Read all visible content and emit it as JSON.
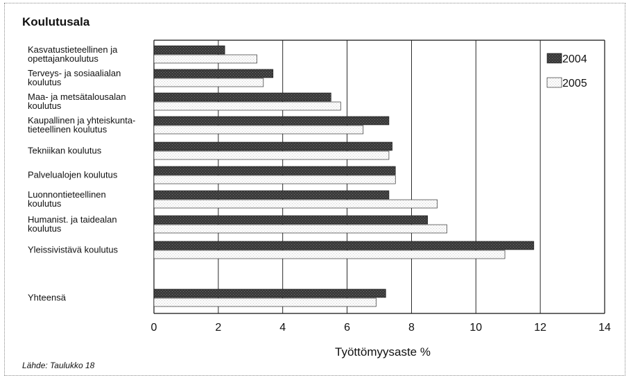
{
  "chart_data": {
    "type": "bar",
    "orientation": "horizontal",
    "title": "Koulutusala",
    "xlabel": "Työttömyysaste %",
    "ylabel": "",
    "xlim": [
      0,
      14
    ],
    "x_ticks": [
      "0",
      "2",
      "4",
      "6",
      "8",
      "10",
      "12",
      "14"
    ],
    "grid": "vertical",
    "legend_position": "top-right",
    "categories": [
      [
        "Kasvatustieteellinen ja",
        "opettajankoulutus"
      ],
      [
        "Terveys- ja sosiaalialan",
        "koulutus"
      ],
      [
        "Maa- ja metsätalousalan",
        "koulutus"
      ],
      [
        "Kaupallinen ja yhteiskunta-",
        "tieteellinen koulutus"
      ],
      [
        "Tekniikan koulutus"
      ],
      [
        "Palvelualojen koulutus"
      ],
      [
        "Luonnontieteellinen",
        "koulutus"
      ],
      [
        "Humanist. ja taidealan",
        "koulutus"
      ],
      [
        "Yleissivistävä koulutus"
      ],
      [
        "Yhteensä"
      ]
    ],
    "series": [
      {
        "name": "2004",
        "values": [
          2.2,
          3.7,
          5.5,
          7.3,
          7.4,
          7.5,
          7.3,
          8.5,
          11.8,
          7.2
        ],
        "color": "#3a3a3a"
      },
      {
        "name": "2005",
        "values": [
          3.2,
          3.4,
          5.8,
          6.5,
          7.3,
          7.5,
          8.8,
          9.1,
          10.9,
          6.9
        ],
        "color": "#ececec"
      }
    ]
  },
  "source_note": "Lähde: Taulukko 18"
}
